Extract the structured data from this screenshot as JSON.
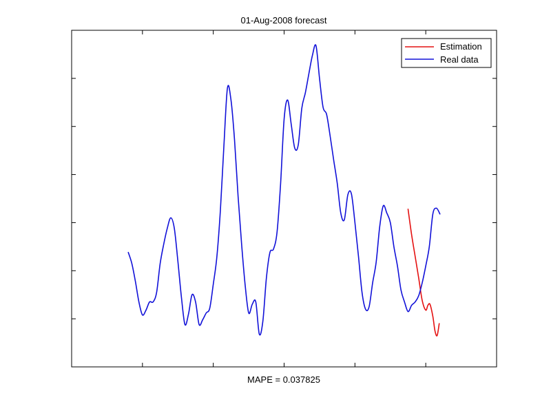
{
  "chart_data": {
    "type": "line",
    "title": "01-Aug-2008 forecast",
    "xlabel": "MAPE = 0.037825",
    "ylabel": "",
    "xlim": [
      0,
      6
    ],
    "ylim": [
      0,
      7
    ],
    "x_ticks": [
      1,
      2,
      3,
      4,
      5
    ],
    "y_ticks": [
      1,
      2,
      3,
      4,
      5,
      6
    ],
    "tick_labels_visible": false,
    "grid": false,
    "legend_position": "top-right",
    "series": [
      {
        "name": "Estimation",
        "color": "#e41010",
        "x": [
          4.75,
          4.8,
          4.85,
          4.9,
          4.95,
          5.0,
          5.03,
          5.06,
          5.1,
          5.13,
          5.16,
          5.19
        ],
        "y": [
          3.28,
          2.75,
          2.3,
          1.85,
          1.38,
          1.18,
          1.28,
          1.3,
          1.05,
          0.75,
          0.65,
          0.9
        ]
      },
      {
        "name": "Real data",
        "color": "#1010d8",
        "x": [
          0.8,
          0.85,
          0.9,
          0.95,
          1.0,
          1.05,
          1.1,
          1.15,
          1.2,
          1.25,
          1.3,
          1.35,
          1.4,
          1.45,
          1.5,
          1.55,
          1.6,
          1.65,
          1.7,
          1.75,
          1.8,
          1.85,
          1.9,
          1.95,
          2.0,
          2.05,
          2.1,
          2.15,
          2.2,
          2.25,
          2.3,
          2.35,
          2.4,
          2.45,
          2.5,
          2.55,
          2.6,
          2.65,
          2.7,
          2.75,
          2.8,
          2.85,
          2.9,
          2.95,
          3.0,
          3.05,
          3.1,
          3.15,
          3.2,
          3.25,
          3.3,
          3.35,
          3.4,
          3.45,
          3.5,
          3.55,
          3.6,
          3.65,
          3.7,
          3.75,
          3.8,
          3.85,
          3.9,
          3.95,
          4.0,
          4.05,
          4.1,
          4.15,
          4.2,
          4.25,
          4.3,
          4.35,
          4.4,
          4.45,
          4.5,
          4.55,
          4.6,
          4.65,
          4.7,
          4.75,
          4.8,
          4.85,
          4.9,
          4.95,
          5.0,
          5.05,
          5.1,
          5.15,
          5.2
        ],
        "y": [
          2.38,
          2.15,
          1.78,
          1.35,
          1.08,
          1.18,
          1.35,
          1.35,
          1.55,
          2.15,
          2.55,
          2.88,
          3.1,
          2.88,
          2.2,
          1.45,
          0.88,
          1.1,
          1.5,
          1.35,
          0.88,
          0.98,
          1.12,
          1.22,
          1.72,
          2.28,
          3.25,
          4.6,
          5.8,
          5.55,
          4.72,
          3.55,
          2.55,
          1.7,
          1.12,
          1.3,
          1.35,
          0.68,
          0.95,
          1.85,
          2.38,
          2.45,
          2.8,
          3.8,
          5.15,
          5.55,
          5.05,
          4.55,
          4.62,
          5.38,
          5.7,
          6.1,
          6.48,
          6.68,
          6.0,
          5.4,
          5.25,
          4.8,
          4.3,
          3.82,
          3.2,
          3.06,
          3.58,
          3.6,
          3.0,
          2.3,
          1.55,
          1.2,
          1.25,
          1.75,
          2.18,
          2.92,
          3.35,
          3.2,
          3.0,
          2.5,
          2.1,
          1.6,
          1.35,
          1.15,
          1.28,
          1.35,
          1.48,
          1.75,
          2.1,
          2.5,
          3.18,
          3.3,
          3.18
        ]
      }
    ]
  }
}
